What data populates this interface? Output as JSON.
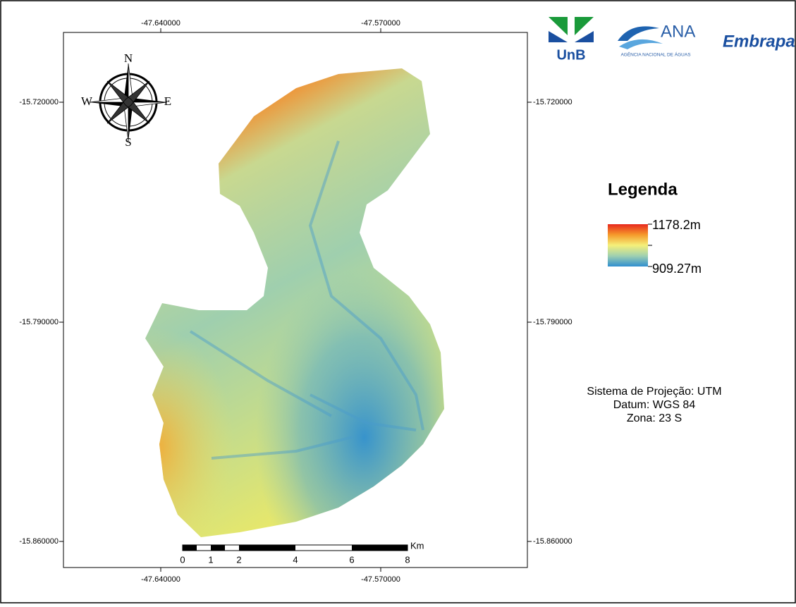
{
  "coordinate_labels": {
    "top": [
      "-47.640000",
      "-47.570000"
    ],
    "bottom": [
      "-47.640000",
      "-47.570000"
    ],
    "left": [
      "-15.720000",
      "-15.790000",
      "-15.860000"
    ],
    "right": [
      "-15.720000",
      "-15.790000",
      "-15.860000"
    ]
  },
  "compass": {
    "north": "N",
    "south": "S",
    "east": "E",
    "west": "W"
  },
  "logos": {
    "unb": "UnB",
    "ana": "ANA",
    "ana_subtitle": "AGÊNCIA NACIONAL DE ÁGUAS",
    "embrapa": "Embrapa"
  },
  "legend": {
    "title": "Legenda",
    "high": "1178.2m",
    "low": "909.27m"
  },
  "projection": [
    "Sistema de Projeção: UTM",
    "Datum: WGS 84",
    "Zona: 23 S"
  ],
  "scale_bar": {
    "labels": [
      "0",
      "1",
      "2",
      "4",
      "6",
      "8"
    ],
    "unit": "Km"
  }
}
